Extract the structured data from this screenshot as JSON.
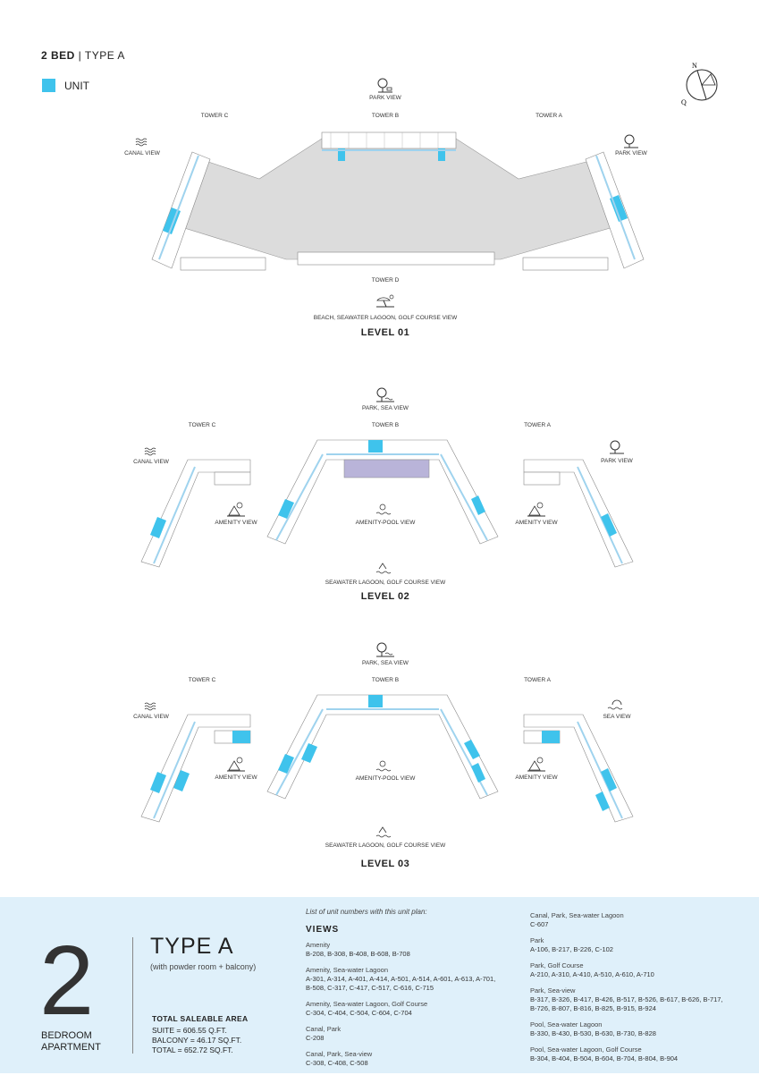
{
  "header": {
    "bed": "2 BED",
    "sep": " | ",
    "type": "TYPE A"
  },
  "legend": {
    "label": "UNIT",
    "color": "#3fc3ec"
  },
  "compass": {
    "n": "N",
    "q": "Q"
  },
  "levels": [
    {
      "name": "LEVEL 01",
      "top_view": "PARK VIEW",
      "bottom_view": "BEACH, SEAWATER LAGOON, GOLF COURSE VIEW",
      "tower_c": "TOWER C",
      "tower_b": "TOWER B",
      "tower_a": "TOWER A",
      "tower_d": "TOWER D",
      "left_view": "CANAL VIEW",
      "right_view": "PARK VIEW",
      "center_view": "",
      "amenity_left": "",
      "amenity_right": ""
    },
    {
      "name": "LEVEL 02",
      "top_view": "PARK, SEA VIEW",
      "bottom_view": "SEAWATER LAGOON, GOLF COURSE VIEW",
      "tower_c": "TOWER C",
      "tower_b": "TOWER B",
      "tower_a": "TOWER A",
      "tower_d": "",
      "left_view": "CANAL VIEW",
      "right_view": "PARK VIEW",
      "center_view": "AMENITY-POOL VIEW",
      "amenity_left": "AMENITY VIEW",
      "amenity_right": "AMENITY VIEW"
    },
    {
      "name": "LEVEL 03",
      "top_view": "PARK, SEA VIEW",
      "bottom_view": "SEAWATER LAGOON, GOLF COURSE VIEW",
      "tower_c": "TOWER C",
      "tower_b": "TOWER B",
      "tower_a": "TOWER A",
      "tower_d": "",
      "left_view": "CANAL VIEW",
      "right_view": "SEA VIEW",
      "center_view": "AMENITY-POOL VIEW",
      "amenity_left": "AMENITY VIEW",
      "amenity_right": "AMENITY VIEW"
    }
  ],
  "footer": {
    "big_number": "2",
    "bedroom": "BEDROOM",
    "apartment": "APARTMENT",
    "type_title": "TYPE A",
    "type_sub": "(with powder room + balcony)",
    "tsa_title": "TOTAL SALEABLE AREA",
    "suite": "SUITE = 606.55 Q.FT.",
    "balcony": "BALCONY = 46.17 SQ.FT.",
    "total": "TOTAL = 652.72 SQ.FT.",
    "list_note": "List of unit numbers with this unit plan:",
    "views_heading": "VIEWS",
    "groups_col1": [
      {
        "title": "Amenity",
        "units": "B-208, B-308, B-408, B-608, B-708"
      },
      {
        "title": "Amenity, Sea-water Lagoon",
        "units": "A-301, A-314, A-401, A-414, A-501, A-514, A-601, A-613, A-701, B-508, C-317, C-417, C-517, C-616, C-715"
      },
      {
        "title": "Amenity, Sea-water Lagoon, Golf Course",
        "units": "C-304, C-404, C-504, C-604, C-704"
      },
      {
        "title": "Canal, Park",
        "units": "C-208"
      },
      {
        "title": "Canal, Park, Sea-view",
        "units": "C-308, C-408, C-508"
      }
    ],
    "groups_col2": [
      {
        "title": "Canal, Park, Sea-water Lagoon",
        "units": "C-607"
      },
      {
        "title": "Park",
        "units": "A-106, B-217, B-226, C-102"
      },
      {
        "title": "Park, Golf Course",
        "units": "A-210, A-310, A-410, A-510, A-610, A-710"
      },
      {
        "title": "Park, Sea-view",
        "units": "B-317, B-326, B-417, B-426, B-517, B-526, B-617, B-626, B-717, B-726, B-807, B-816, B-825, B-915, B-924"
      },
      {
        "title": "Pool, Sea-water Lagoon",
        "units": "B-330, B-430, B-530, B-630, B-730, B-828"
      },
      {
        "title": "Pool, Sea-water Lagoon, Golf Course",
        "units": "B-304, B-404, B-504, B-604, B-704, B-804, B-904"
      }
    ]
  },
  "colors": {
    "unit": "#3fc3ec",
    "corridor": "#cfe7f4",
    "core": "#dcdcdc",
    "footer_bg": "#dff0fa",
    "amenity": "#b9b4d9"
  }
}
